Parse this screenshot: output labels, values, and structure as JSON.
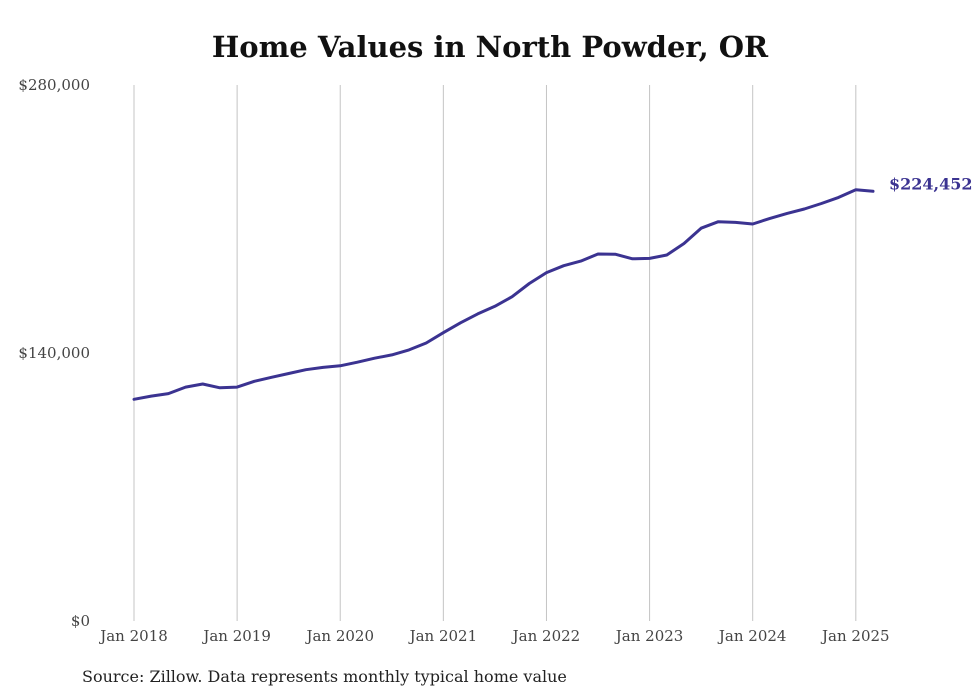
{
  "chart_data": {
    "type": "line",
    "title": "Home Values in North Powder, OR",
    "xlabel": "",
    "ylabel": "",
    "x_ticks": [
      "Jan 2018",
      "Jan 2019",
      "Jan 2020",
      "Jan 2021",
      "Jan 2022",
      "Jan 2023",
      "Jan 2024",
      "Jan 2025"
    ],
    "y_ticks": [
      "$0",
      "$140,000",
      "$280,000"
    ],
    "y_tick_values": [
      0,
      140000,
      280000
    ],
    "ylim": [
      0,
      280000
    ],
    "xlim": [
      "2018-01",
      "2025-03"
    ],
    "grid": "vertical",
    "series": [
      {
        "color": "#3b3391",
        "end_label": "$224,452",
        "points": [
          [
            "2018-01",
            115800
          ],
          [
            "2018-03",
            117500
          ],
          [
            "2018-05",
            118800
          ],
          [
            "2018-07",
            122200
          ],
          [
            "2018-09",
            123800
          ],
          [
            "2018-11",
            121800
          ],
          [
            "2019-01",
            122200
          ],
          [
            "2019-03",
            125200
          ],
          [
            "2019-05",
            127300
          ],
          [
            "2019-07",
            129300
          ],
          [
            "2019-09",
            131300
          ],
          [
            "2019-11",
            132500
          ],
          [
            "2020-01",
            133300
          ],
          [
            "2020-03",
            135200
          ],
          [
            "2020-05",
            137300
          ],
          [
            "2020-07",
            139000
          ],
          [
            "2020-09",
            141600
          ],
          [
            "2020-11",
            145200
          ],
          [
            "2021-01",
            150600
          ],
          [
            "2021-03",
            155800
          ],
          [
            "2021-05",
            160400
          ],
          [
            "2021-07",
            164400
          ],
          [
            "2021-09",
            169400
          ],
          [
            "2021-11",
            176300
          ],
          [
            "2022-01",
            182000
          ],
          [
            "2022-03",
            185600
          ],
          [
            "2022-05",
            188000
          ],
          [
            "2022-07",
            191700
          ],
          [
            "2022-09",
            191600
          ],
          [
            "2022-11",
            189200
          ],
          [
            "2023-01",
            189400
          ],
          [
            "2023-03",
            191200
          ],
          [
            "2023-05",
            197200
          ],
          [
            "2023-07",
            205200
          ],
          [
            "2023-09",
            208600
          ],
          [
            "2023-11",
            208200
          ],
          [
            "2024-01",
            207400
          ],
          [
            "2024-03",
            210300
          ],
          [
            "2024-05",
            212900
          ],
          [
            "2024-07",
            215200
          ],
          [
            "2024-09",
            218100
          ],
          [
            "2024-11",
            221300
          ],
          [
            "2025-01",
            225300
          ],
          [
            "2025-03",
            224452
          ]
        ]
      }
    ]
  },
  "source_note": "Source: Zillow. Data represents monthly typical home value"
}
